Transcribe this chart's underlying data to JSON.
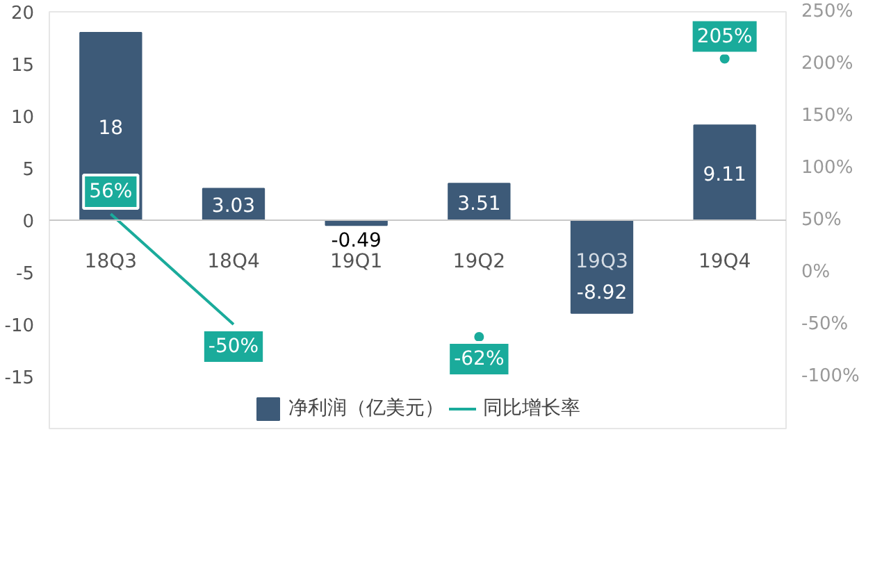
{
  "chart_data": {
    "type": "bar",
    "categories": [
      "18Q3",
      "18Q4",
      "19Q1",
      "19Q2",
      "19Q3",
      "19Q4"
    ],
    "series": [
      {
        "name": "净利润（亿美元）",
        "color": "#3d5a78",
        "values": [
          18,
          3.03,
          -0.49,
          3.51,
          -8.92,
          9.11
        ]
      },
      {
        "name": "同比增长率",
        "type": "line",
        "axis": "y2",
        "color": "#1aab9b",
        "values": [
          56,
          -50,
          null,
          -62,
          null,
          205
        ],
        "value_labels": [
          "56%",
          "-50%",
          null,
          "-62%",
          null,
          "205%"
        ]
      }
    ],
    "data_labels": true,
    "ylim": [
      -20,
      20
    ],
    "yticks": [
      -15,
      -10,
      -5,
      0,
      5,
      10,
      15,
      20
    ],
    "y2lim": [
      -150,
      250
    ],
    "y2ticks": [
      {
        "value": -100,
        "label": "-100%"
      },
      {
        "value": -50,
        "label": "-50%"
      },
      {
        "value": 0,
        "label": "0%"
      },
      {
        "value": 50,
        "label": "50%"
      },
      {
        "value": 100,
        "label": "100%"
      },
      {
        "value": 150,
        "label": "150%"
      },
      {
        "value": 200,
        "label": "200%"
      },
      {
        "value": 250,
        "label": "250%"
      }
    ],
    "grid": false,
    "legend": "bottom"
  }
}
